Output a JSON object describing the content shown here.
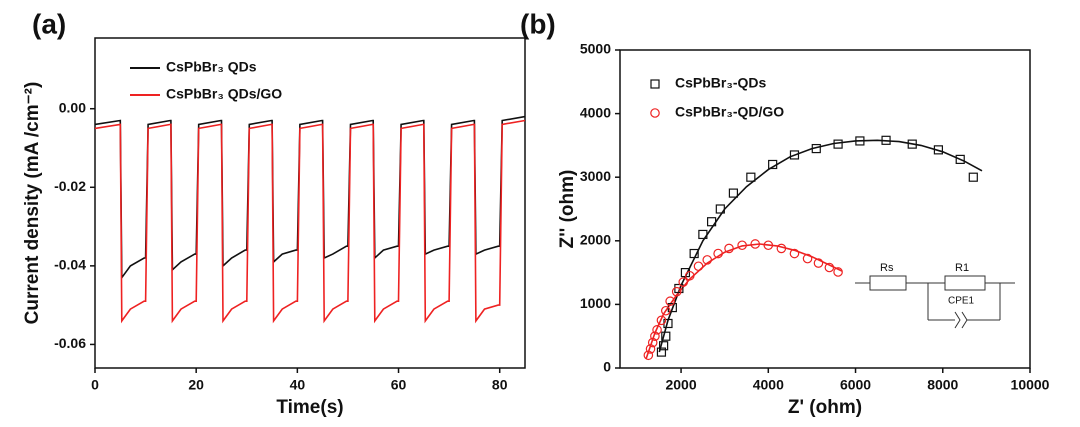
{
  "chart_data": [
    {
      "type": "line",
      "panel_label": "(a)",
      "x_label": "Time(s)",
      "y_label": "Current density (mA /cm⁻²)",
      "xlim": [
        0,
        85
      ],
      "xticks": [
        0,
        20,
        40,
        60,
        80
      ],
      "ylim": [
        -0.066,
        0.018
      ],
      "yticks": [
        {
          "value": 0,
          "label": "0.00"
        },
        -0.02,
        -0.04,
        -0.06
      ],
      "x": [
        0,
        5,
        5.3,
        7,
        9.7,
        10,
        10.5,
        14.9,
        15,
        15.3,
        17,
        19.7,
        20,
        20.5,
        24.9,
        25,
        25.3,
        27,
        29.7,
        30,
        30.5,
        34.9,
        35,
        35.3,
        37,
        39.7,
        40,
        40.5,
        44.9,
        45,
        45.3,
        47,
        49.7,
        50,
        50.5,
        54.9,
        55,
        55.3,
        57,
        59.7,
        60,
        60.5,
        64.9,
        65,
        65.3,
        67,
        69.7,
        70,
        70.5,
        74.9,
        75,
        75.3,
        77,
        79.7,
        80,
        80.5,
        85
      ],
      "series": [
        {
          "name": "CsPbBr₃ QDs",
          "color": "#111111",
          "values": [
            -0.004,
            -0.003,
            -0.043,
            -0.04,
            -0.038,
            -0.038,
            -0.004,
            -0.003,
            -0.003,
            -0.041,
            -0.039,
            -0.037,
            -0.037,
            -0.004,
            -0.003,
            -0.003,
            -0.04,
            -0.038,
            -0.036,
            -0.036,
            -0.004,
            -0.003,
            -0.003,
            -0.039,
            -0.037,
            -0.036,
            -0.036,
            -0.004,
            -0.003,
            -0.003,
            -0.038,
            -0.037,
            -0.035,
            -0.035,
            -0.004,
            -0.003,
            -0.003,
            -0.038,
            -0.036,
            -0.035,
            -0.035,
            -0.004,
            -0.003,
            -0.003,
            -0.037,
            -0.036,
            -0.035,
            -0.035,
            -0.004,
            -0.003,
            -0.003,
            -0.037,
            -0.036,
            -0.035,
            -0.035,
            -0.003,
            -0.002
          ]
        },
        {
          "name": "CsPbBr₃ QDs/GO",
          "color": "#ee2222",
          "values": [
            -0.005,
            -0.004,
            -0.054,
            -0.051,
            -0.049,
            -0.049,
            -0.005,
            -0.004,
            -0.004,
            -0.054,
            -0.051,
            -0.049,
            -0.049,
            -0.005,
            -0.004,
            -0.004,
            -0.054,
            -0.051,
            -0.049,
            -0.049,
            -0.005,
            -0.004,
            -0.004,
            -0.054,
            -0.051,
            -0.049,
            -0.049,
            -0.005,
            -0.004,
            -0.004,
            -0.054,
            -0.051,
            -0.049,
            -0.049,
            -0.005,
            -0.004,
            -0.004,
            -0.054,
            -0.051,
            -0.049,
            -0.049,
            -0.005,
            -0.004,
            -0.004,
            -0.054,
            -0.051,
            -0.049,
            -0.049,
            -0.005,
            -0.004,
            -0.004,
            -0.054,
            -0.051,
            -0.05,
            -0.05,
            -0.004,
            -0.003
          ]
        }
      ]
    },
    {
      "type": "scatter",
      "panel_label": "(b)",
      "x_label": "Z' (ohm)",
      "y_label": "Z'' (ohm)",
      "xlim": [
        600,
        10000
      ],
      "xticks": [
        2000,
        4000,
        6000,
        8000,
        10000
      ],
      "ylim": [
        0,
        5000
      ],
      "yticks": [
        0,
        1000,
        2000,
        3000,
        4000,
        5000
      ],
      "series": [
        {
          "name": "CsPbBr₃-QDs",
          "color": "#111111",
          "marker": "square",
          "x": [
            1550,
            1600,
            1650,
            1700,
            1800,
            1950,
            2100,
            2300,
            2500,
            2700,
            2900,
            3200,
            3600,
            4100,
            4600,
            5100,
            5600,
            6100,
            6700,
            7300,
            7900,
            8400,
            8700
          ],
          "values": [
            250,
            350,
            500,
            700,
            950,
            1250,
            1500,
            1800,
            2100,
            2300,
            2500,
            2750,
            3000,
            3200,
            3350,
            3450,
            3520,
            3570,
            3580,
            3520,
            3430,
            3280,
            3000
          ]
        },
        {
          "name": "CsPbBr₃-QD/GO",
          "color": "#ee2222",
          "marker": "circle",
          "x": [
            1250,
            1300,
            1350,
            1400,
            1450,
            1550,
            1650,
            1750,
            1900,
            2050,
            2200,
            2400,
            2600,
            2850,
            3100,
            3400,
            3700,
            4000,
            4300,
            4600,
            4900,
            5150,
            5400,
            5600
          ],
          "values": [
            200,
            300,
            400,
            500,
            600,
            750,
            900,
            1050,
            1200,
            1350,
            1450,
            1600,
            1700,
            1800,
            1880,
            1930,
            1950,
            1930,
            1880,
            1800,
            1720,
            1650,
            1580,
            1510
          ]
        }
      ],
      "fits": [
        {
          "color": "#111111",
          "x": [
            1500,
            1700,
            2000,
            2500,
            3000,
            3500,
            4000,
            4500,
            5000,
            5500,
            6000,
            6500,
            7000,
            7500,
            8000,
            8500,
            8900
          ],
          "values": [
            250,
            750,
            1300,
            2000,
            2500,
            2850,
            3120,
            3320,
            3450,
            3530,
            3570,
            3580,
            3560,
            3500,
            3400,
            3250,
            3100
          ]
        },
        {
          "color": "#ee2222",
          "x": [
            1200,
            1400,
            1600,
            1900,
            2200,
            2600,
            3000,
            3400,
            3800,
            4200,
            4600,
            5000,
            5400,
            5700
          ],
          "values": [
            150,
            550,
            850,
            1150,
            1400,
            1650,
            1820,
            1920,
            1950,
            1920,
            1850,
            1750,
            1620,
            1520
          ]
        }
      ],
      "annotations": [
        "Rs",
        "R1",
        "CPE1"
      ]
    }
  ]
}
